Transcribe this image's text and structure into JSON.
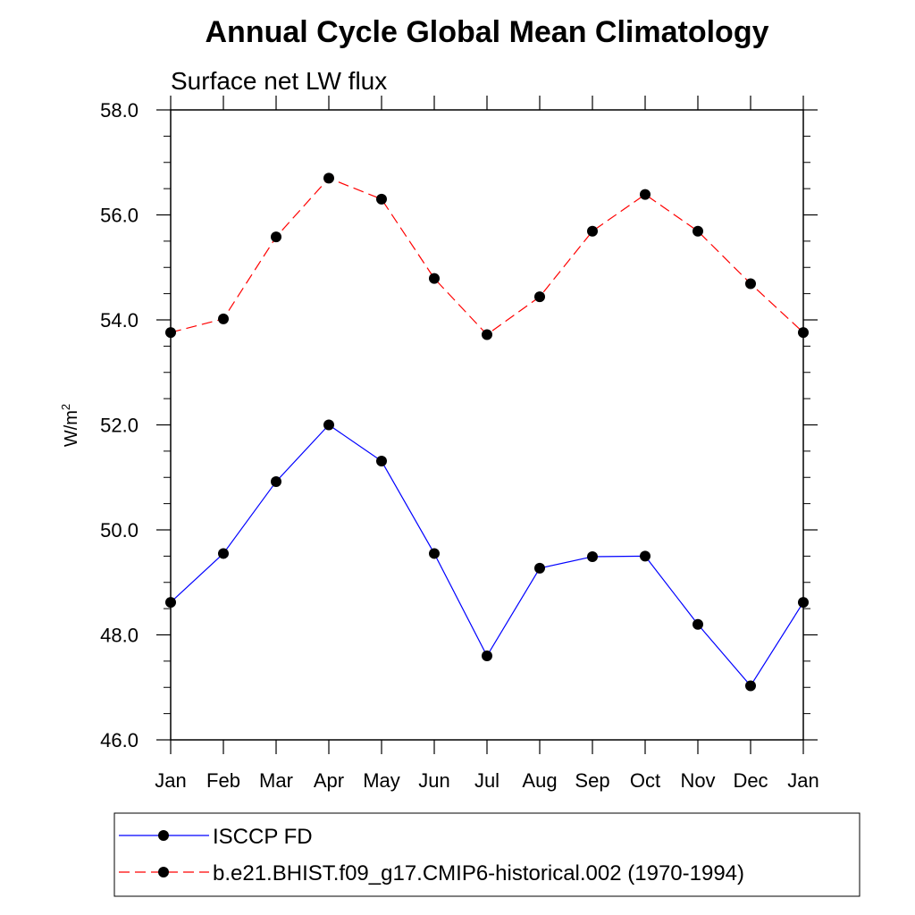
{
  "chart_data": {
    "type": "line",
    "title": "Annual Cycle Global Mean Climatology",
    "subtitle": "Surface net LW flux",
    "ylabel_base": "W/m",
    "ylabel_sup": "2",
    "xlabel": "",
    "categories": [
      "Jan",
      "Feb",
      "Mar",
      "Apr",
      "May",
      "Jun",
      "Jul",
      "Aug",
      "Sep",
      "Oct",
      "Nov",
      "Dec",
      "Jan"
    ],
    "ylim": [
      46.0,
      58.0
    ],
    "yticks": [
      "46.0",
      "48.0",
      "50.0",
      "52.0",
      "54.0",
      "56.0",
      "58.0"
    ],
    "grid": false,
    "legend_position": "bottom",
    "series": [
      {
        "name": "ISCCP FD",
        "color": "#0000ff",
        "line_style": "solid",
        "marker": "filled-circle",
        "values": [
          48.62,
          49.55,
          50.92,
          52.0,
          51.31,
          49.55,
          47.6,
          49.27,
          49.49,
          49.5,
          48.2,
          47.03,
          48.62
        ]
      },
      {
        "name": "b.e21.BHIST.f09_g17.CMIP6-historical.002 (1970-1994)",
        "color": "#ff0000",
        "line_style": "dashed",
        "marker": "filled-circle",
        "values": [
          53.76,
          54.02,
          55.58,
          56.7,
          56.3,
          54.79,
          53.72,
          54.44,
          55.69,
          56.39,
          55.69,
          54.69,
          53.76
        ]
      }
    ]
  }
}
